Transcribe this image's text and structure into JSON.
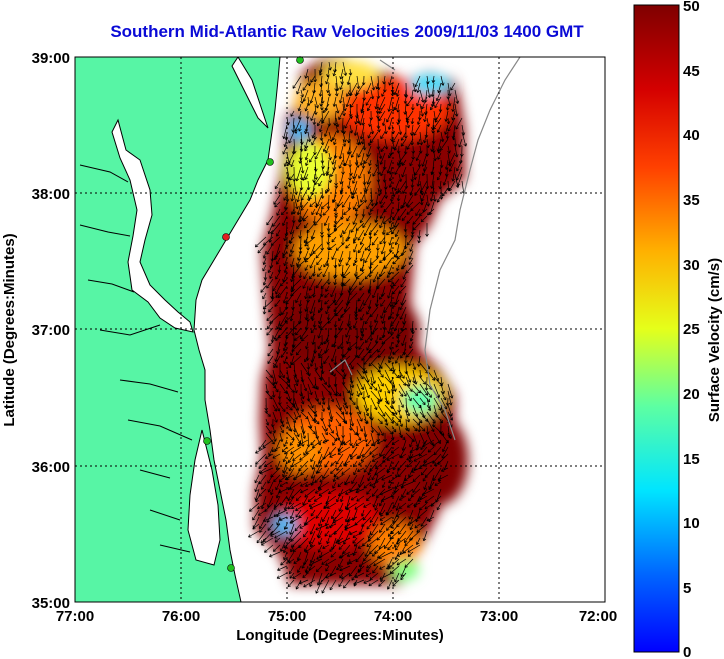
{
  "title": "Southern Mid-Atlantic Raw Velocities 2009/11/03 1400 GMT",
  "x_axis": {
    "label": "Longitude (Degrees:Minutes)",
    "ticks": [
      "77:00",
      "76:00",
      "75:00",
      "74:00",
      "73:00",
      "72:00"
    ]
  },
  "y_axis": {
    "label": "Latitude (Degrees:Minutes)",
    "ticks": [
      "39:00",
      "38:00",
      "37:00",
      "36:00",
      "35:00"
    ]
  },
  "colorbar": {
    "label": "Surface Velocity (cm/s)",
    "ticks": [
      "50",
      "45",
      "40",
      "35",
      "30",
      "25",
      "20",
      "15",
      "10",
      "5",
      "0"
    ],
    "min": 0,
    "max": 50,
    "colormap": "jet"
  },
  "colors": {
    "land": "#57f5a5",
    "title": "#0a0ad6",
    "station": "#20c020",
    "station_alt": "#e02020",
    "grid": "#000000"
  },
  "map_extent": {
    "lon": [
      -77,
      -72
    ],
    "lat": [
      35,
      39
    ]
  },
  "velocity_bands": [
    {
      "lat": 38.2,
      "lon_mean": -73.7,
      "speed_cm_s": 48
    },
    {
      "lat": 37.0,
      "lon_mean": -74.4,
      "speed_cm_s": 47
    },
    {
      "lat": 36.4,
      "lon_mean": -74.3,
      "speed_cm_s": 25
    },
    {
      "lat": 35.5,
      "lon_mean": -74.2,
      "speed_cm_s": 49
    }
  ]
}
